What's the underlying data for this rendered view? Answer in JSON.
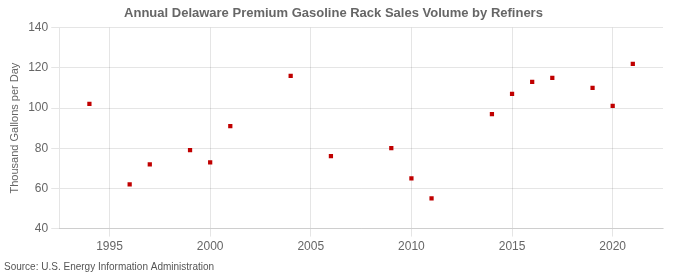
{
  "chart_data": {
    "type": "scatter",
    "title": "Annual Delaware Premium Gasoline Rack Sales Volume by Refiners",
    "ylabel": "Thousand Gallons per Day",
    "annotation": "Source: U.S. Energy Information Administration",
    "x": [
      1994,
      1996,
      1997,
      1999,
      2000,
      2001,
      2004,
      2006,
      2009,
      2010,
      2011,
      2014,
      2015,
      2016,
      2017,
      2019,
      2020,
      2021
    ],
    "values": [
      102,
      62,
      72,
      79,
      73,
      91,
      116,
      76,
      80,
      65,
      55,
      97,
      107,
      113,
      115,
      110,
      101,
      122
    ],
    "color": "#c00000",
    "marker": "square",
    "xlim": [
      1992.5,
      2022.5
    ],
    "ylim": [
      40,
      140
    ],
    "xticks": [
      1995,
      2000,
      2005,
      2010,
      2015,
      2020
    ],
    "yticks": [
      40,
      60,
      80,
      100,
      120,
      140
    ],
    "grid": true
  }
}
